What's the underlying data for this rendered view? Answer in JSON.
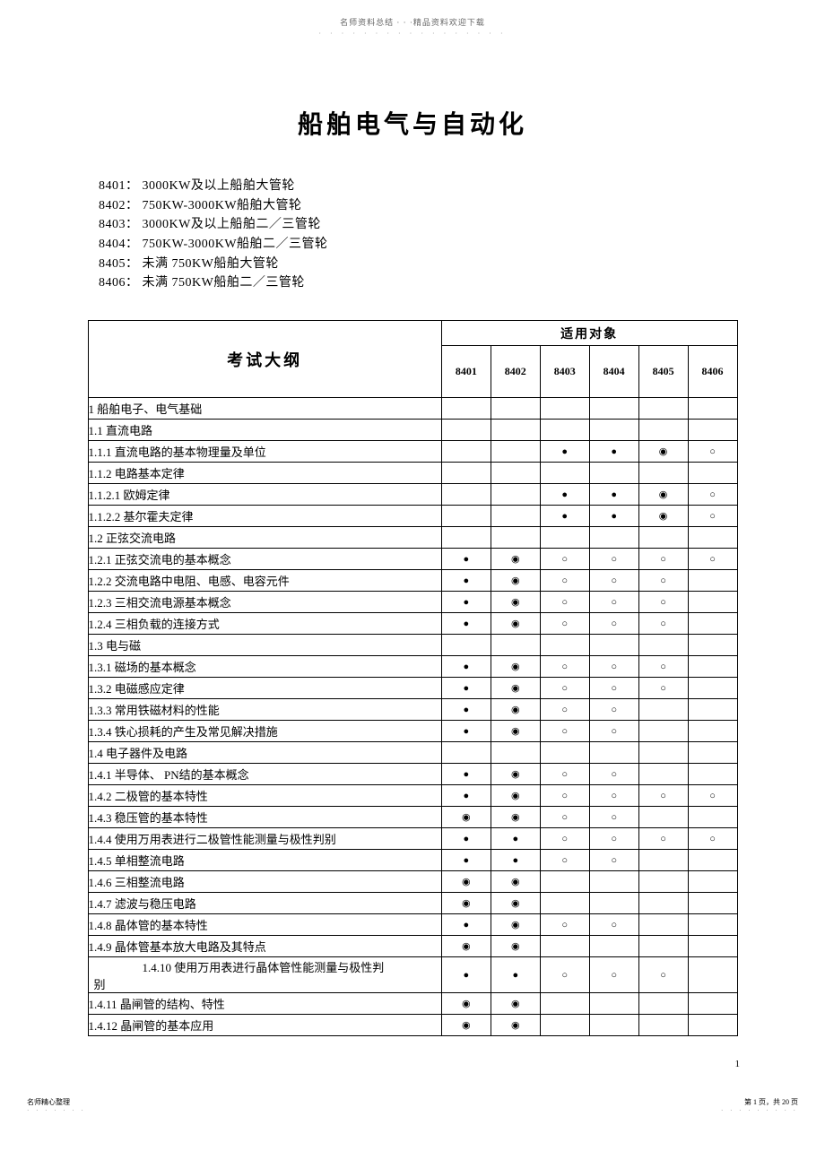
{
  "header": {
    "top_text": "名师资料总结 · · ·精品资料欢迎下载",
    "dots": "· · · · · · · · · · · · · · · · ·"
  },
  "title": "船舶电气与自动化",
  "codes": [
    "8401： 3000KW及以上船舶大管轮",
    "8402： 750KW-3000KW船舶大管轮",
    "8403： 3000KW及以上船舶二／三管轮",
    "8404： 750KW-3000KW船舶二／三管轮",
    "8405：  未满 750KW船舶大管轮",
    "8406：  未满 750KW船舶二／三管轮"
  ],
  "table": {
    "header_syllabus": "考试大纲",
    "header_target": "适用对象",
    "cols": [
      "8401",
      "8402",
      "8403",
      "8404",
      "8405",
      "8406"
    ],
    "marks": {
      "filled": "●",
      "double": "◉",
      "empty": "○",
      "none": ""
    },
    "rows": [
      {
        "label": "1 船舶电子、电气基础",
        "indent": 0,
        "m": [
          "",
          "",
          "",
          "",
          "",
          ""
        ]
      },
      {
        "label": "1.1  直流电路",
        "indent": 1,
        "m": [
          "",
          "",
          "",
          "",
          "",
          ""
        ]
      },
      {
        "label": "1.1.1  直流电路的基本物理量及单位",
        "indent": 2,
        "m": [
          "",
          "",
          "●",
          "●",
          "◉",
          "○"
        ]
      },
      {
        "label": "1.1.2  电路基本定律",
        "indent": 2,
        "m": [
          "",
          "",
          "",
          "",
          "",
          ""
        ]
      },
      {
        "label": "1.1.2.1    欧姆定律",
        "indent": 3,
        "m": [
          "",
          "",
          "●",
          "●",
          "◉",
          "○"
        ]
      },
      {
        "label": "1.1.2.2    基尔霍夫定律",
        "indent": 3,
        "m": [
          "",
          "",
          "●",
          "●",
          "◉",
          "○"
        ]
      },
      {
        "label": "1.2  正弦交流电路",
        "indent": 1,
        "m": [
          "",
          "",
          "",
          "",
          "",
          ""
        ]
      },
      {
        "label": "1.2.1    正弦交流电的基本概念",
        "indent": 2,
        "m": [
          "●",
          "◉",
          "○",
          "○",
          "○",
          "○"
        ]
      },
      {
        "label": "1.2.2  交流电路中电阻、电感、电容元件",
        "indent": 2,
        "m": [
          "●",
          "◉",
          "○",
          "○",
          "○",
          ""
        ]
      },
      {
        "label": "1.2.3  三相交流电源基本概念",
        "indent": 2,
        "m": [
          "●",
          "◉",
          "○",
          "○",
          "○",
          ""
        ]
      },
      {
        "label": "1.2.4  三相负载的连接方式",
        "indent": 2,
        "m": [
          "●",
          "◉",
          "○",
          "○",
          "○",
          ""
        ]
      },
      {
        "label": "1.3  电与磁",
        "indent": 1,
        "m": [
          "",
          "",
          "",
          "",
          "",
          ""
        ]
      },
      {
        "label": "1.3.1  磁场的基本概念",
        "indent": 2,
        "m": [
          "●",
          "◉",
          "○",
          "○",
          "○",
          ""
        ]
      },
      {
        "label": "1.3.2  电磁感应定律",
        "indent": 2,
        "m": [
          "●",
          "◉",
          "○",
          "○",
          "○",
          ""
        ]
      },
      {
        "label": "1.3.3  常用铁磁材料的性能",
        "indent": 2,
        "m": [
          "●",
          "◉",
          "○",
          "○",
          "",
          ""
        ]
      },
      {
        "label": "1.3.4  铁心损耗的产生及常见解决措施",
        "indent": 2,
        "m": [
          "●",
          "◉",
          "○",
          "○",
          "",
          ""
        ]
      },
      {
        "label": "1.4  电子器件及电路",
        "indent": 1,
        "m": [
          "",
          "",
          "",
          "",
          "",
          ""
        ]
      },
      {
        "label": "1.4.1  半导体、 PN结的基本概念",
        "indent": 2,
        "m": [
          "●",
          "◉",
          "○",
          "○",
          "",
          ""
        ]
      },
      {
        "label": "1.4.2  二极管的基本特性",
        "indent": 2,
        "m": [
          "●",
          "◉",
          "○",
          "○",
          "○",
          "○"
        ]
      },
      {
        "label": "1.4.3  稳压管的基本特性",
        "indent": 2,
        "m": [
          "◉",
          "◉",
          "○",
          "○",
          "",
          ""
        ]
      },
      {
        "label": "1.4.4  使用万用表进行二极管性能测量与极性判别",
        "indent": 2,
        "m": [
          "●",
          "●",
          "○",
          "○",
          "○",
          "○"
        ]
      },
      {
        "label": "1.4.5  单相整流电路",
        "indent": 2,
        "m": [
          "●",
          "●",
          "○",
          "○",
          "",
          ""
        ]
      },
      {
        "label": "1.4.6  三相整流电路",
        "indent": 2,
        "m": [
          "◉",
          "◉",
          "",
          "",
          "",
          ""
        ]
      },
      {
        "label": "1.4.7  滤波与稳压电路",
        "indent": 2,
        "m": [
          "◉",
          "◉",
          "",
          "",
          "",
          ""
        ]
      },
      {
        "label": "1.4.8  晶体管的基本特性",
        "indent": 2,
        "m": [
          "●",
          "◉",
          "○",
          "○",
          "",
          ""
        ]
      },
      {
        "label": "1.4.9  晶体管基本放大电路及其特点",
        "indent": 2,
        "m": [
          "◉",
          "◉",
          "",
          "",
          "",
          ""
        ]
      },
      {
        "label": "1.4.10  使用万用表进行晶体管性能测量与极性判别",
        "indent": 2,
        "m": [
          "●",
          "●",
          "○",
          "○",
          "○",
          ""
        ],
        "two_line": true,
        "tail": "别"
      },
      {
        "label": "1.4.11  晶闸管的结构、特性",
        "indent": 2,
        "m": [
          "◉",
          "◉",
          "",
          "",
          "",
          ""
        ]
      },
      {
        "label": "1.4.12  晶闸管的基本应用",
        "indent": 2,
        "m": [
          "◉",
          "◉",
          "",
          "",
          "",
          ""
        ]
      }
    ]
  },
  "page_number": "1",
  "footer": {
    "left_line1": "名师精心整理",
    "left_dots": "· · · · · · ·",
    "right_line1": "第 1 页，共 20 页",
    "right_dots": "· · · · · · · · ·"
  }
}
